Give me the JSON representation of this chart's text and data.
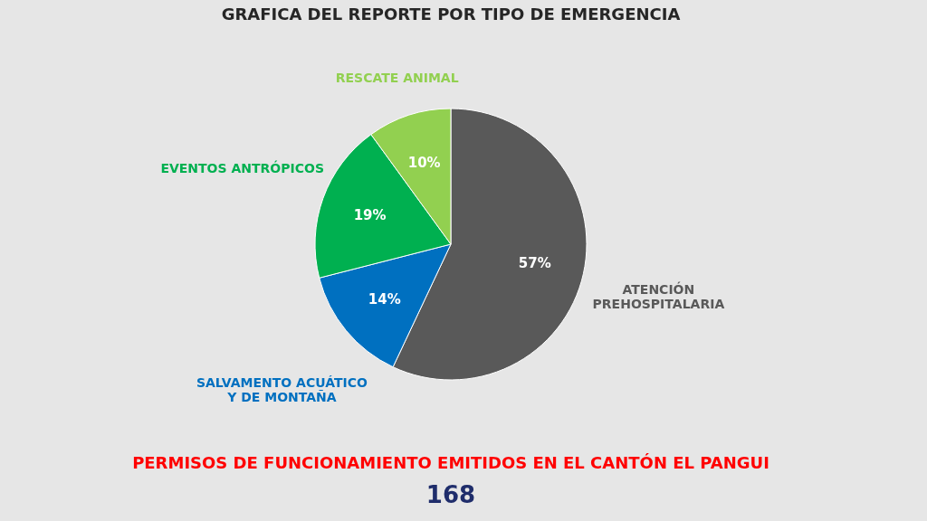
{
  "chart_data": {
    "type": "pie",
    "title": "GRAFICA DEL REPORTE POR TIPO DE EMERGENCIA",
    "categories": [
      "ATENCIÓN PREHOSPITALARIA",
      "SALVAMENTO ACUÁTICO Y DE MONTAÑA",
      "EVENTOS ANTRÓPICOS",
      "RESCATE ANIMAL"
    ],
    "values": [
      57,
      14,
      19,
      10
    ],
    "colors": [
      "#595959",
      "#0070c0",
      "#00b050",
      "#92d050"
    ],
    "value_labels": [
      "57%",
      "14%",
      "19%",
      "10%"
    ],
    "annotations": [
      "PERMISOS DE FUNCIONAMIENTO EMITIDOS EN EL CANTÓN EL PANGUI",
      "168"
    ],
    "legend": false
  }
}
